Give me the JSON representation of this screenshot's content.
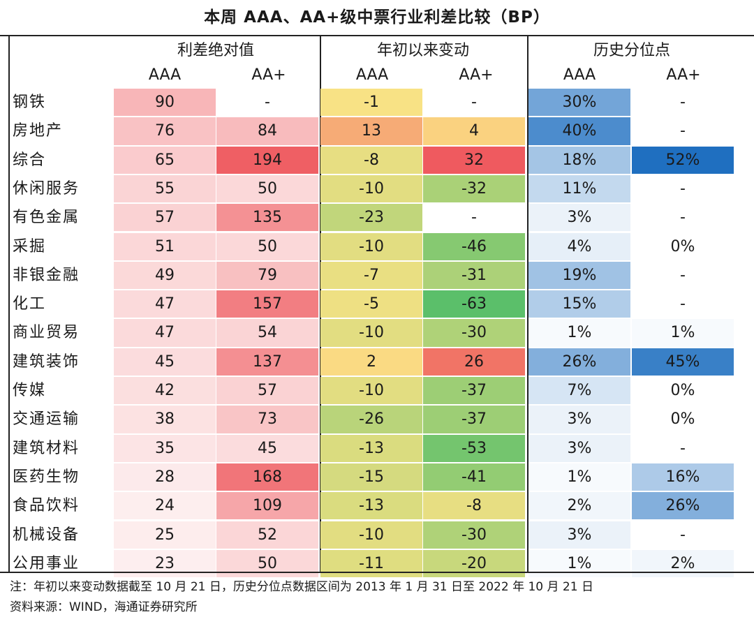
{
  "title": "本周 AAA、AA+级中票行业利差比较（BP）",
  "groups": [
    {
      "label": "利差绝对值",
      "sub": [
        "AAA",
        "AA+"
      ]
    },
    {
      "label": "年初以来变动",
      "sub": [
        "AAA",
        "AA+"
      ]
    },
    {
      "label": "历史分位点",
      "sub": [
        "AAA",
        "AA+"
      ]
    }
  ],
  "chart_data": {
    "type": "table",
    "title": "本周 AAA、AA+级中票行业利差比较（BP）",
    "columns": [
      "利差绝对值 AAA",
      "利差绝对值 AA+",
      "年初以来变动 AAA",
      "年初以来变动 AA+",
      "历史分位点 AAA",
      "历史分位点 AA+"
    ],
    "categories": [
      "钢铁",
      "房地产",
      "综合",
      "休闲服务",
      "有色金属",
      "采掘",
      "非银金融",
      "化工",
      "商业贸易",
      "建筑装饰",
      "传媒",
      "交通运输",
      "建筑材料",
      "医药生物",
      "食品饮料",
      "机械设备",
      "公用事业"
    ],
    "spread_aaa": [
      90,
      76,
      65,
      55,
      57,
      51,
      49,
      47,
      47,
      45,
      42,
      38,
      35,
      28,
      24,
      25,
      23
    ],
    "spread_aa_plus": [
      null,
      84,
      194,
      50,
      135,
      50,
      79,
      157,
      54,
      137,
      57,
      73,
      45,
      168,
      109,
      52,
      50
    ],
    "ytd_change_aaa": [
      -1,
      13,
      -8,
      -10,
      -23,
      -10,
      -7,
      -5,
      -10,
      2,
      -10,
      -26,
      -13,
      -15,
      -13,
      -10,
      -11
    ],
    "ytd_change_aa_plus": [
      null,
      4,
      32,
      -32,
      null,
      -46,
      -31,
      -63,
      -30,
      26,
      -37,
      -37,
      -53,
      -41,
      -8,
      -30,
      -20
    ],
    "percentile_aaa": [
      30,
      40,
      18,
      11,
      3,
      4,
      19,
      15,
      1,
      26,
      7,
      3,
      3,
      1,
      2,
      3,
      1
    ],
    "percentile_aa_plus": [
      null,
      null,
      52,
      null,
      null,
      0,
      null,
      null,
      1,
      45,
      0,
      0,
      null,
      16,
      26,
      null,
      2
    ],
    "missing_label": "-",
    "percent_suffix": "%"
  },
  "colors": {
    "spread_low": "#fdf1f1",
    "spread_high": "#ef5a5f",
    "change_neg": "#5bbf6a",
    "change_mid": "#fbe385",
    "change_pos": "#ef5a5f",
    "pct_low": "#ffffff",
    "pct_high": "#1f6fc0"
  },
  "footnote": {
    "note": "注：年初以来变动数据截至 10 月 21 日，历史分位点数据区间为 2013 年 1 月 31 日至 2022 年 10 月 21 日",
    "source": "资料来源：WIND，海通证券研究所"
  }
}
